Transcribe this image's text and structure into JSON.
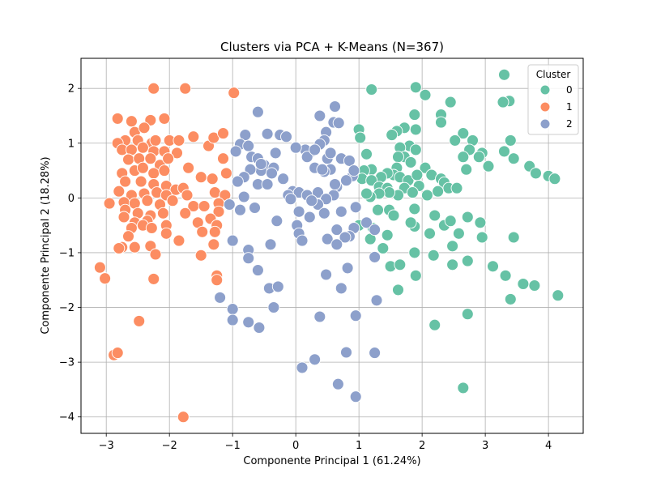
{
  "chart_data": {
    "type": "scatter",
    "title": "Clusters via PCA + K-Means (N=367)",
    "xlabel": "Componente Principal 1 (61.24%)",
    "ylabel": "Componente Principal 2 (18.28%)",
    "xlim": [
      -3.4,
      4.55
    ],
    "ylim": [
      -4.3,
      2.55
    ],
    "xticks": [
      -3,
      -2,
      -1,
      0,
      1,
      2,
      3,
      4
    ],
    "yticks": [
      -4,
      -3,
      -2,
      -1,
      0,
      1,
      2
    ],
    "tick_labels_x": [
      "−3",
      "−2",
      "−1",
      "0",
      "1",
      "2",
      "3",
      "4"
    ],
    "tick_labels_y": [
      "−4",
      "−3",
      "−2",
      "−1",
      "0",
      "1",
      "2"
    ],
    "grid": true,
    "legend": {
      "title": "Cluster",
      "placement": "top-right",
      "entries": [
        "0",
        "1",
        "2"
      ]
    },
    "series": [
      {
        "name": "0",
        "color": "#66c2a5",
        "points": [
          [
            1.2,
            1.98
          ],
          [
            1.9,
            2.02
          ],
          [
            2.05,
            1.88
          ],
          [
            3.3,
            2.25
          ],
          [
            3.38,
            1.77
          ],
          [
            3.28,
            1.75
          ],
          [
            2.45,
            1.75
          ],
          [
            2.3,
            1.52
          ],
          [
            2.3,
            1.38
          ],
          [
            1.88,
            1.52
          ],
          [
            1.9,
            1.25
          ],
          [
            1.72,
            1.28
          ],
          [
            1.6,
            1.22
          ],
          [
            1.0,
            1.25
          ],
          [
            1.02,
            1.1
          ],
          [
            1.52,
            1.15
          ],
          [
            2.65,
            1.18
          ],
          [
            2.52,
            1.05
          ],
          [
            2.8,
            1.05
          ],
          [
            2.75,
            0.88
          ],
          [
            2.65,
            0.75
          ],
          [
            2.7,
            0.52
          ],
          [
            2.95,
            0.82
          ],
          [
            3.3,
            0.85
          ],
          [
            3.4,
            1.05
          ],
          [
            3.45,
            0.72
          ],
          [
            3.7,
            0.58
          ],
          [
            3.8,
            0.45
          ],
          [
            3.05,
            0.58
          ],
          [
            2.9,
            0.75
          ],
          [
            1.8,
            0.95
          ],
          [
            1.65,
            0.92
          ],
          [
            1.9,
            0.88
          ],
          [
            1.72,
            0.75
          ],
          [
            1.62,
            0.75
          ],
          [
            1.82,
            0.65
          ],
          [
            2.05,
            0.55
          ],
          [
            1.6,
            0.55
          ],
          [
            1.55,
            0.42
          ],
          [
            1.65,
            0.38
          ],
          [
            1.78,
            0.32
          ],
          [
            1.45,
            0.45
          ],
          [
            1.35,
            0.38
          ],
          [
            1.2,
            0.52
          ],
          [
            1.08,
            0.5
          ],
          [
            1.12,
            0.8
          ],
          [
            1.05,
            0.35
          ],
          [
            1.2,
            0.32
          ],
          [
            1.32,
            0.2
          ],
          [
            1.45,
            0.18
          ],
          [
            1.72,
            0.18
          ],
          [
            1.92,
            0.42
          ],
          [
            1.95,
            0.22
          ],
          [
            2.15,
            0.42
          ],
          [
            2.3,
            0.35
          ],
          [
            2.35,
            0.28
          ],
          [
            2.42,
            0.18
          ],
          [
            2.55,
            0.18
          ],
          [
            2.25,
            0.12
          ],
          [
            2.08,
            0.05
          ],
          [
            1.85,
            0.1
          ],
          [
            1.62,
            0.05
          ],
          [
            1.48,
            0.1
          ],
          [
            1.32,
            0.08
          ],
          [
            1.18,
            0.02
          ],
          [
            1.12,
            0.08
          ],
          [
            1.3,
            -0.22
          ],
          [
            1.48,
            -0.22
          ],
          [
            1.55,
            -0.32
          ],
          [
            1.88,
            -0.2
          ],
          [
            2.2,
            -0.32
          ],
          [
            2.35,
            -0.5
          ],
          [
            2.45,
            -0.42
          ],
          [
            2.72,
            -0.35
          ],
          [
            2.92,
            -0.45
          ],
          [
            2.58,
            -0.65
          ],
          [
            2.48,
            -0.88
          ],
          [
            2.12,
            -0.65
          ],
          [
            1.88,
            -0.52
          ],
          [
            1.82,
            -0.45
          ],
          [
            1.45,
            -0.68
          ],
          [
            1.38,
            -0.92
          ],
          [
            1.22,
            -0.55
          ],
          [
            1.0,
            -0.5
          ],
          [
            1.18,
            -0.75
          ],
          [
            1.88,
            -1.0
          ],
          [
            2.18,
            -1.05
          ],
          [
            2.48,
            -1.22
          ],
          [
            2.72,
            -1.15
          ],
          [
            2.95,
            -0.72
          ],
          [
            3.12,
            -1.25
          ],
          [
            3.32,
            -1.42
          ],
          [
            3.45,
            -0.72
          ],
          [
            3.6,
            -1.57
          ],
          [
            3.78,
            -1.6
          ],
          [
            3.4,
            -1.85
          ],
          [
            4.15,
            -1.78
          ],
          [
            2.72,
            -2.12
          ],
          [
            2.2,
            -2.32
          ],
          [
            2.65,
            -3.47
          ],
          [
            1.5,
            -1.25
          ],
          [
            1.65,
            -1.22
          ],
          [
            1.9,
            -1.42
          ],
          [
            1.62,
            -1.68
          ],
          [
            4.0,
            0.4
          ],
          [
            4.1,
            0.35
          ]
        ]
      },
      {
        "name": "1",
        "color": "#fc8d62",
        "points": [
          [
            -2.25,
            2.0
          ],
          [
            -1.75,
            2.0
          ],
          [
            -0.98,
            1.92
          ],
          [
            -2.82,
            1.45
          ],
          [
            -2.6,
            1.4
          ],
          [
            -2.3,
            1.42
          ],
          [
            -2.08,
            1.45
          ],
          [
            -2.55,
            1.2
          ],
          [
            -2.4,
            1.28
          ],
          [
            -2.7,
            1.05
          ],
          [
            -2.5,
            1.05
          ],
          [
            -2.28,
            1.0
          ],
          [
            -2.22,
            1.05
          ],
          [
            -2.0,
            1.05
          ],
          [
            -1.85,
            1.05
          ],
          [
            -1.62,
            1.12
          ],
          [
            -1.38,
            0.95
          ],
          [
            -1.3,
            1.1
          ],
          [
            -1.15,
            1.18
          ],
          [
            -2.82,
            1.0
          ],
          [
            -2.75,
            0.88
          ],
          [
            -2.6,
            0.88
          ],
          [
            -2.42,
            0.92
          ],
          [
            -2.25,
            0.85
          ],
          [
            -2.08,
            0.85
          ],
          [
            -1.88,
            0.82
          ],
          [
            -2.65,
            0.7
          ],
          [
            -2.48,
            0.72
          ],
          [
            -2.3,
            0.72
          ],
          [
            -2.15,
            0.6
          ],
          [
            -2.02,
            0.72
          ],
          [
            -1.7,
            0.55
          ],
          [
            -1.15,
            0.72
          ],
          [
            -1.1,
            0.45
          ],
          [
            -2.75,
            0.45
          ],
          [
            -2.55,
            0.5
          ],
          [
            -2.42,
            0.55
          ],
          [
            -2.25,
            0.45
          ],
          [
            -2.08,
            0.5
          ],
          [
            -1.5,
            0.38
          ],
          [
            -1.32,
            0.35
          ],
          [
            -2.7,
            0.3
          ],
          [
            -2.45,
            0.3
          ],
          [
            -2.25,
            0.25
          ],
          [
            -2.05,
            0.22
          ],
          [
            -1.9,
            0.15
          ],
          [
            -1.78,
            0.18
          ],
          [
            -2.8,
            0.12
          ],
          [
            -2.6,
            0.05
          ],
          [
            -2.4,
            0.08
          ],
          [
            -2.2,
            0.1
          ],
          [
            -2.05,
            0.05
          ],
          [
            -1.72,
            0.05
          ],
          [
            -1.28,
            0.1
          ],
          [
            -1.12,
            0.05
          ],
          [
            -2.72,
            -0.08
          ],
          [
            -2.55,
            -0.1
          ],
          [
            -2.35,
            -0.05
          ],
          [
            -2.15,
            -0.12
          ],
          [
            -1.95,
            -0.05
          ],
          [
            -1.62,
            -0.15
          ],
          [
            -1.45,
            -0.15
          ],
          [
            -1.22,
            -0.1
          ],
          [
            -2.95,
            -0.1
          ],
          [
            -2.7,
            -0.22
          ],
          [
            -2.5,
            -0.28
          ],
          [
            -2.3,
            -0.32
          ],
          [
            -2.1,
            -0.28
          ],
          [
            -1.75,
            -0.28
          ],
          [
            -1.22,
            -0.25
          ],
          [
            -2.72,
            -0.35
          ],
          [
            -2.55,
            -0.45
          ],
          [
            -2.35,
            -0.42
          ],
          [
            -2.05,
            -0.5
          ],
          [
            -1.55,
            -0.45
          ],
          [
            -1.35,
            -0.38
          ],
          [
            -1.25,
            -0.5
          ],
          [
            -2.6,
            -0.55
          ],
          [
            -2.42,
            -0.5
          ],
          [
            -2.28,
            -0.55
          ],
          [
            -2.05,
            -0.65
          ],
          [
            -1.28,
            -0.62
          ],
          [
            -2.65,
            -0.7
          ],
          [
            -1.48,
            -0.62
          ],
          [
            -2.75,
            -0.9
          ],
          [
            -2.8,
            -0.92
          ],
          [
            -2.55,
            -0.9
          ],
          [
            -2.3,
            -0.88
          ],
          [
            -1.85,
            -0.78
          ],
          [
            -1.3,
            -0.85
          ],
          [
            -2.22,
            -1.03
          ],
          [
            -1.5,
            -1.05
          ],
          [
            -3.1,
            -1.27
          ],
          [
            -3.02,
            -1.47
          ],
          [
            -2.25,
            -1.48
          ],
          [
            -1.25,
            -1.42
          ],
          [
            -1.25,
            -1.5
          ],
          [
            -2.48,
            -2.25
          ],
          [
            -2.88,
            -2.87
          ],
          [
            -2.82,
            -2.83
          ],
          [
            -1.78,
            -4.0
          ]
        ]
      },
      {
        "name": "2",
        "color": "#8da0cb",
        "points": [
          [
            -0.6,
            1.57
          ],
          [
            0.38,
            1.5
          ],
          [
            0.62,
            1.67
          ],
          [
            0.6,
            1.38
          ],
          [
            0.68,
            1.37
          ],
          [
            -0.45,
            1.17
          ],
          [
            -0.25,
            1.15
          ],
          [
            -0.8,
            1.15
          ],
          [
            0.48,
            1.2
          ],
          [
            0.45,
            1.05
          ],
          [
            0.38,
            0.98
          ],
          [
            0.25,
            0.85
          ],
          [
            0.15,
            0.88
          ],
          [
            0.0,
            0.92
          ],
          [
            -0.88,
            0.98
          ],
          [
            -0.75,
            0.95
          ],
          [
            -0.7,
            0.75
          ],
          [
            -0.6,
            0.72
          ],
          [
            -0.5,
            0.6
          ],
          [
            -0.32,
            0.82
          ],
          [
            -0.35,
            0.55
          ],
          [
            -0.55,
            0.5
          ],
          [
            -0.72,
            0.52
          ],
          [
            -0.82,
            0.38
          ],
          [
            -0.95,
            0.85
          ],
          [
            -0.92,
            0.3
          ],
          [
            -0.6,
            0.25
          ],
          [
            -0.38,
            0.45
          ],
          [
            -0.45,
            0.25
          ],
          [
            -0.2,
            0.35
          ],
          [
            -0.05,
            0.12
          ],
          [
            0.05,
            0.1
          ],
          [
            -0.12,
            0.05
          ],
          [
            0.18,
            0.05
          ],
          [
            0.35,
            0.1
          ],
          [
            0.5,
            0.72
          ],
          [
            0.55,
            0.52
          ],
          [
            0.45,
            0.48
          ],
          [
            0.3,
            0.55
          ],
          [
            0.18,
            0.75
          ],
          [
            0.72,
            0.72
          ],
          [
            0.85,
            0.68
          ],
          [
            0.9,
            0.4
          ],
          [
            0.8,
            0.32
          ],
          [
            0.92,
            0.5
          ],
          [
            0.65,
            0.2
          ],
          [
            0.6,
            0.05
          ],
          [
            0.48,
            -0.02
          ],
          [
            0.35,
            -0.12
          ],
          [
            0.25,
            -0.05
          ],
          [
            0.05,
            -0.25
          ],
          [
            -0.08,
            -0.02
          ],
          [
            0.02,
            -0.5
          ],
          [
            -0.3,
            -0.42
          ],
          [
            -0.65,
            -0.18
          ],
          [
            -0.88,
            -0.22
          ],
          [
            -0.82,
            0.02
          ],
          [
            -1.05,
            -0.12
          ],
          [
            0.22,
            -0.35
          ],
          [
            0.45,
            -0.28
          ],
          [
            0.72,
            -0.25
          ],
          [
            0.92,
            -0.55
          ],
          [
            0.95,
            -0.17
          ],
          [
            0.85,
            -0.7
          ],
          [
            0.65,
            -0.58
          ],
          [
            0.5,
            -0.75
          ],
          [
            0.78,
            -0.72
          ],
          [
            0.65,
            -0.85
          ],
          [
            0.82,
            -1.28
          ],
          [
            0.72,
            -1.65
          ],
          [
            0.48,
            -1.4
          ],
          [
            0.05,
            -0.65
          ],
          [
            0.1,
            -0.78
          ],
          [
            -0.4,
            -0.85
          ],
          [
            -0.75,
            -0.95
          ],
          [
            -0.75,
            -1.1
          ],
          [
            -0.6,
            -1.32
          ],
          [
            -0.42,
            -1.65
          ],
          [
            -0.28,
            -1.62
          ],
          [
            -1.0,
            -0.78
          ],
          [
            -1.2,
            -1.82
          ],
          [
            -1.0,
            -2.03
          ],
          [
            -1.0,
            -2.23
          ],
          [
            -0.75,
            -2.27
          ],
          [
            -0.58,
            -2.37
          ],
          [
            -0.35,
            -2.0
          ],
          [
            0.38,
            -2.17
          ],
          [
            0.95,
            -2.15
          ],
          [
            1.25,
            -2.83
          ],
          [
            1.28,
            -1.87
          ],
          [
            1.12,
            -0.45
          ],
          [
            1.25,
            -1.08
          ],
          [
            1.25,
            -0.58
          ],
          [
            0.8,
            -2.82
          ],
          [
            0.3,
            -2.95
          ],
          [
            0.1,
            -3.1
          ],
          [
            0.67,
            -3.4
          ],
          [
            0.95,
            -3.63
          ],
          [
            0.62,
            0.25
          ],
          [
            0.3,
            0.88
          ],
          [
            -0.15,
            1.12
          ],
          [
            -0.55,
            0.62
          ],
          [
            0.42,
            0.52
          ],
          [
            0.55,
            0.82
          ]
        ]
      }
    ]
  }
}
